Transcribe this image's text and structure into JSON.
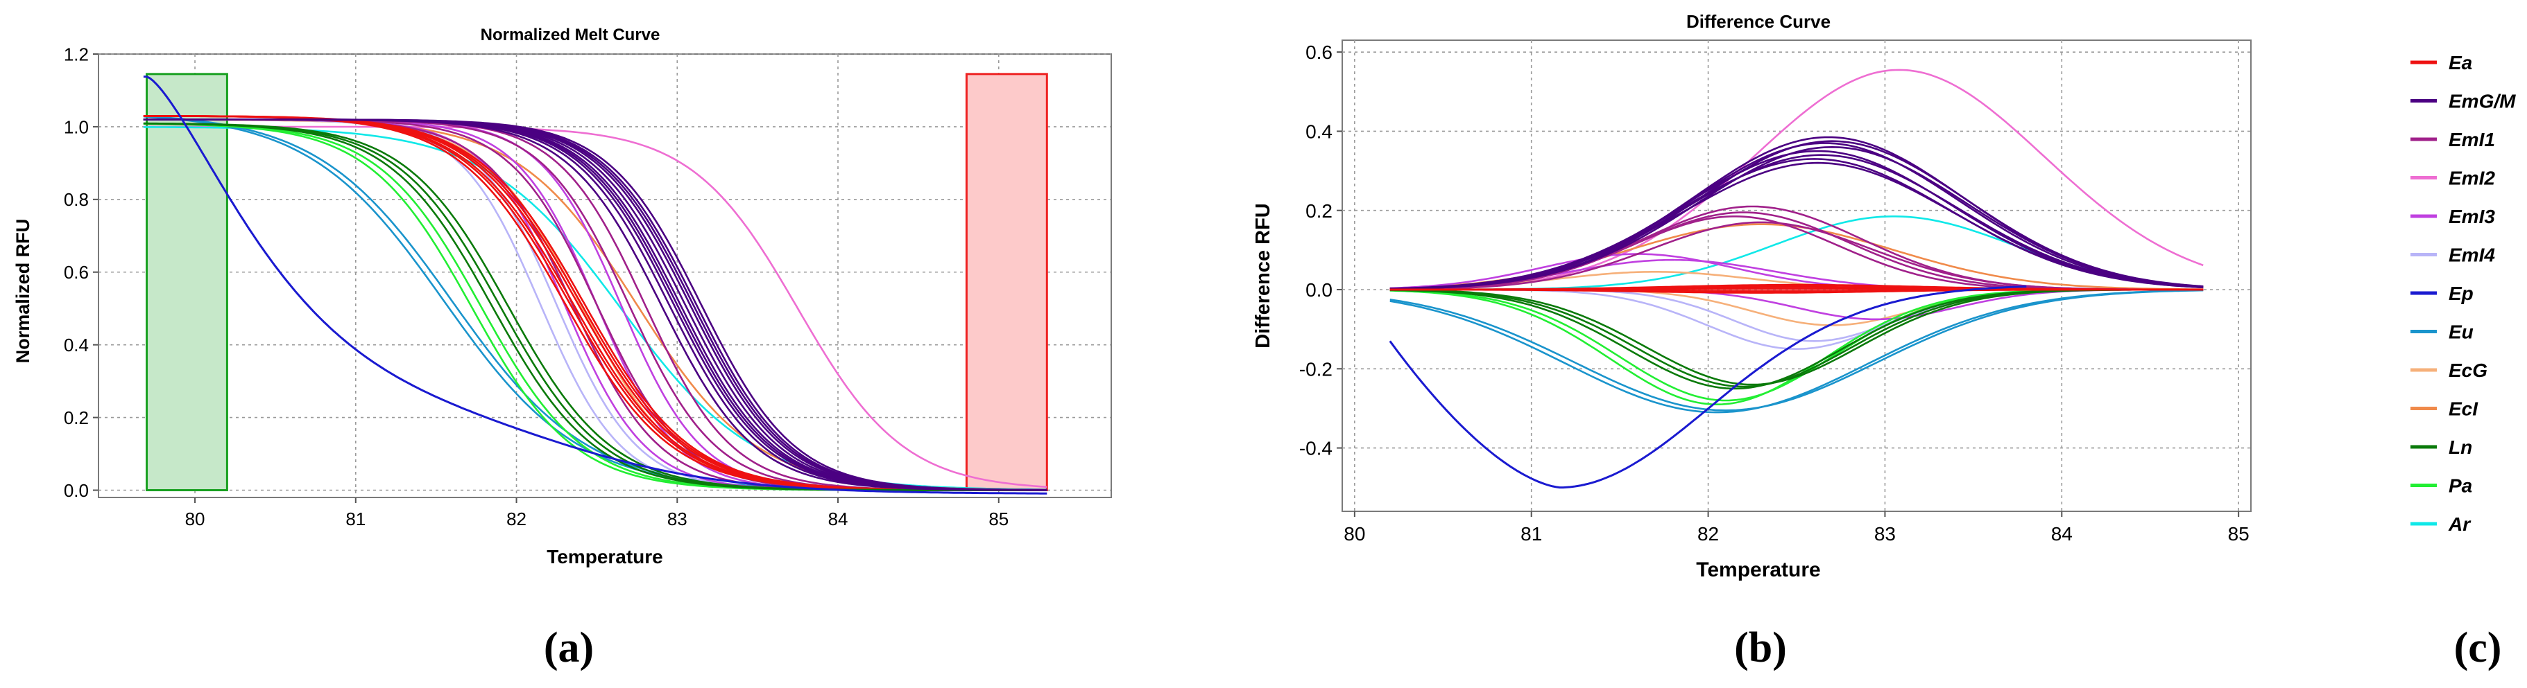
{
  "panel_labels": [
    "(a)",
    "(b)",
    "(c)"
  ],
  "legend": {
    "entries": [
      {
        "label": "Ea",
        "color": "#ee1111"
      },
      {
        "label": "EmG/M",
        "color": "#4b0082"
      },
      {
        "label": "EmI1",
        "color": "#a0208a"
      },
      {
        "label": "EmI2",
        "color": "#ee6ed2"
      },
      {
        "label": "EmI3",
        "color": "#c040e0"
      },
      {
        "label": "EmI4",
        "color": "#b8b4f8"
      },
      {
        "label": "Ep",
        "color": "#1a1ad0"
      },
      {
        "label": "Eu",
        "color": "#1a94cc"
      },
      {
        "label": "EcG",
        "color": "#f6b07a"
      },
      {
        "label": "EcI",
        "color": "#f08a4a"
      },
      {
        "label": "Ln",
        "color": "#0a7a0a"
      },
      {
        "label": "Pa",
        "color": "#22ee33"
      },
      {
        "label": "Ar",
        "color": "#10e8e8"
      }
    ]
  },
  "chart_data": [
    {
      "type": "line",
      "id": "a",
      "title": "Normalized Melt Curve",
      "xlabel": "Temperature",
      "ylabel": "Normalized RFU",
      "xlim": [
        79.4,
        85.7
      ],
      "ylim": [
        -0.02,
        1.2
      ],
      "xticks": [
        80,
        81,
        82,
        83,
        84,
        85
      ],
      "yticks": [
        0.0,
        0.2,
        0.4,
        0.6,
        0.8,
        1.0,
        1.2
      ],
      "ytick_labels": [
        "0.0",
        "0.2",
        "0.4",
        "0.6",
        "0.8",
        "1.0",
        "1.2"
      ],
      "regions": [
        {
          "x0": 79.7,
          "x1": 80.2,
          "y_top": 1.145,
          "fill": "#c6e8c9",
          "stroke": "#18a020"
        },
        {
          "x0": 84.8,
          "x1": 85.3,
          "y_top": 1.145,
          "fill": "#fdcaca",
          "stroke": "#ee2222"
        }
      ],
      "series": [
        {
          "name": "Ea",
          "color": "#ee1111",
          "kind": "sigmoid",
          "tm": [
            82.35,
            82.3,
            82.4,
            82.38,
            82.33,
            82.42
          ],
          "w": 0.33,
          "start": 1.03
        },
        {
          "name": "EmG/M",
          "color": "#4b0082",
          "kind": "sigmoid",
          "tm": [
            82.95,
            83.0,
            83.05,
            83.1,
            82.9,
            83.12,
            83.02,
            82.98,
            83.15,
            83.08
          ],
          "w": 0.29,
          "start": 1.02
        },
        {
          "name": "EmI1",
          "color": "#a0208a",
          "kind": "sigmoid",
          "tm": [
            82.5,
            82.7,
            82.8,
            82.35
          ],
          "w": 0.27,
          "start": 1.02
        },
        {
          "name": "EmI2",
          "color": "#ee6ed2",
          "kind": "sigmoid",
          "tm": [
            83.75
          ],
          "w": 0.33,
          "start": 1.0
        },
        {
          "name": "EmI3",
          "color": "#c040e0",
          "kind": "sigmoid",
          "tm": [
            82.3,
            82.5,
            82.65
          ],
          "w": 0.25,
          "start": 1.02
        },
        {
          "name": "EmI4",
          "color": "#b8b4f8",
          "kind": "sigmoid",
          "tm": [
            82.15,
            82.25
          ],
          "w": 0.25,
          "start": 1.02
        },
        {
          "name": "Ep",
          "color": "#1a1ad0",
          "kind": "ep"
        },
        {
          "name": "Eu",
          "color": "#1a94cc",
          "kind": "sigmoid",
          "tm": [
            81.55,
            81.6
          ],
          "w": 0.42,
          "start": 1.04
        },
        {
          "name": "EcG",
          "color": "#f6b07a",
          "kind": "sigmoid",
          "tm": [
            82.4
          ],
          "w": 0.3,
          "start": 1.02
        },
        {
          "name": "EcI",
          "color": "#f08a4a",
          "kind": "sigmoid",
          "tm": [
            82.75
          ],
          "w": 0.37,
          "start": 1.02
        },
        {
          "name": "Ln",
          "color": "#0a7a0a",
          "kind": "sigmoid",
          "tm": [
            81.9,
            81.85,
            81.95
          ],
          "w": 0.32,
          "start": 1.01
        },
        {
          "name": "Pa",
          "color": "#22ee33",
          "kind": "sigmoid",
          "tm": [
            81.72,
            81.78
          ],
          "w": 0.32,
          "start": 1.01
        },
        {
          "name": "Ar",
          "color": "#10e8e8",
          "kind": "sigmoid",
          "tm": [
            82.65
          ],
          "w": 0.42,
          "start": 1.0
        }
      ]
    },
    {
      "type": "line",
      "id": "b",
      "title": "Difference Curve",
      "xlabel": "Temperature",
      "ylabel": "Difference RFU",
      "xlim": [
        79.93,
        85.07
      ],
      "ylim": [
        -0.56,
        0.63
      ],
      "xticks": [
        80,
        81,
        82,
        83,
        84,
        85
      ],
      "yticks": [
        -0.4,
        -0.2,
        0.0,
        0.2,
        0.4,
        0.6
      ],
      "ytick_labels": [
        "-0.4",
        "-0.2",
        "0.0",
        "0.2",
        "0.4",
        "0.6"
      ],
      "curve_x_range": [
        80.2,
        84.8
      ],
      "series": [
        {
          "name": "Ea",
          "color": "#ee1111",
          "curves": [
            [
              0.002,
              82.4,
              0.65
            ],
            [
              0.012,
              82.5,
              0.7
            ],
            [
              -0.008,
              82.3,
              0.65
            ],
            [
              0.006,
              82.45,
              0.7
            ],
            [
              -0.004,
              82.35,
              0.65
            ],
            [
              0.01,
              82.55,
              0.7
            ]
          ]
        },
        {
          "name": "EmG/M",
          "color": "#4b0082",
          "curves": [
            [
              0.385,
              82.68,
              0.76
            ],
            [
              0.37,
              82.66,
              0.76
            ],
            [
              0.36,
              82.7,
              0.76
            ],
            [
              0.35,
              82.62,
              0.76
            ],
            [
              0.34,
              82.64,
              0.77
            ],
            [
              0.33,
              82.6,
              0.77
            ],
            [
              0.32,
              82.62,
              0.77
            ],
            [
              0.375,
              82.7,
              0.76
            ]
          ]
        },
        {
          "name": "EmI1",
          "color": "#a0208a",
          "curves": [
            [
              0.21,
              82.25,
              0.62
            ],
            [
              0.195,
              82.2,
              0.6
            ],
            [
              0.185,
              82.15,
              0.58
            ],
            [
              0.17,
              82.3,
              0.62
            ]
          ]
        },
        {
          "name": "EmI2",
          "color": "#ee6ed2",
          "curves": [
            [
              0.555,
              83.08,
              0.82
            ]
          ]
        },
        {
          "name": "EmI3",
          "color": "#c040e0",
          "curves": [
            [
              0.09,
              81.6,
              0.55
            ],
            [
              0.075,
              81.8,
              0.58
            ],
            [
              -0.075,
              82.95,
              0.45
            ]
          ]
        },
        {
          "name": "EmI4",
          "color": "#b8b4f8",
          "curves": [
            [
              -0.15,
              82.5,
              0.5
            ],
            [
              -0.13,
              82.6,
              0.45
            ]
          ]
        },
        {
          "name": "Ep",
          "color": "#1a1ad0",
          "kind": "ep"
        },
        {
          "name": "Eu",
          "color": "#1a94cc",
          "curves": [
            [
              -0.31,
              82.05,
              0.85
            ],
            [
              -0.305,
              82.1,
              0.85
            ]
          ]
        },
        {
          "name": "EcG",
          "color": "#f6b07a",
          "curves": [
            [
              0.045,
              81.7,
              0.55
            ],
            [
              -0.09,
              82.7,
              0.45
            ]
          ]
        },
        {
          "name": "EcI",
          "color": "#f08a4a",
          "curves": [
            [
              0.165,
              82.3,
              0.75
            ]
          ]
        },
        {
          "name": "Ln",
          "color": "#0a7a0a",
          "curves": [
            [
              -0.245,
              82.2,
              0.6
            ],
            [
              -0.25,
              82.15,
              0.6
            ],
            [
              -0.24,
              82.25,
              0.6
            ]
          ]
        },
        {
          "name": "Pa",
          "color": "#22ee33",
          "curves": [
            [
              -0.28,
              82.1,
              0.6
            ],
            [
              -0.29,
              82.05,
              0.6
            ]
          ]
        },
        {
          "name": "Ar",
          "color": "#10e8e8",
          "curves": [
            [
              0.185,
              83.05,
              0.68
            ]
          ]
        }
      ]
    }
  ]
}
